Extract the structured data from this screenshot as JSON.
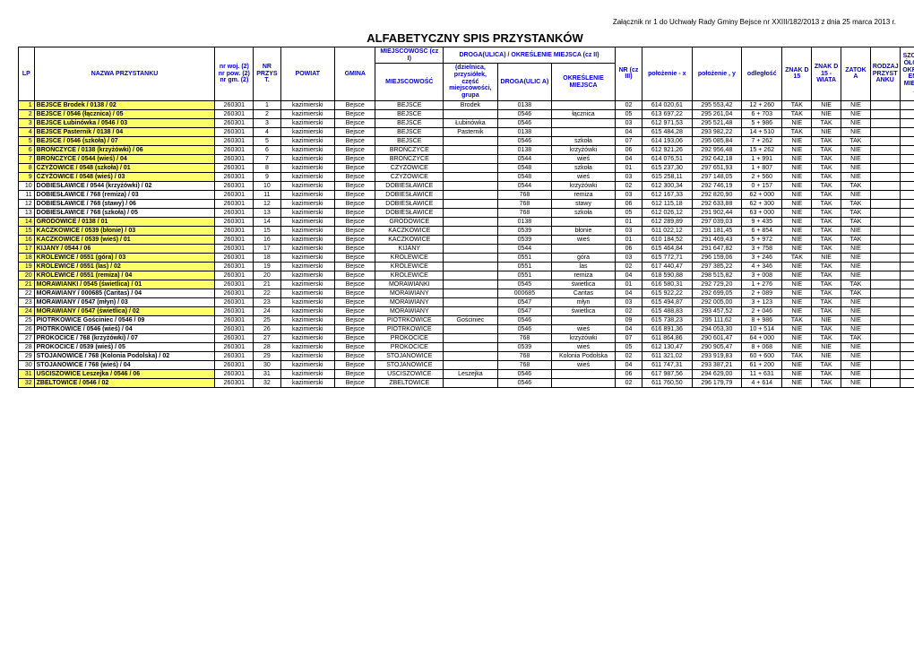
{
  "header_note": "Załącznik nr 1 do Uchwały Rady Gminy Bejsce nr XXIII/182/2013 z dnia 25 marca 2013 r.",
  "title": "ALFABETYCZNY SPIS PRZYSTANKÓW",
  "section1": "MIEJSCOWOŚĆ (cz I)",
  "section2": "DROGA(ULICA) / OKREŚLENIE MIEJSCA (cz II)",
  "columns": {
    "lp": "LP",
    "name": "NAZWA PRZYSTANKU",
    "nrwoj": "nr woj. (2) nr pow. (2) nr gm. (2)",
    "nrprzy": "NR PRZYS T.",
    "powiat": "POWIAT",
    "gmina": "GMINA",
    "miejsc": "MIEJSCOWOŚĆ",
    "dziel": "(dzielnica, przysiółek, część miejscowości, grupa",
    "droga": "DROGA(ULIC A)",
    "okres": "OKREŚLENIE MIEJSCA",
    "nrcz": "NR (cz III)",
    "polx": "położenie - x",
    "poly": "położenie , y",
    "odl": "odległość",
    "znak1": "ZNAK D 15",
    "znak2": "ZNAK D 15 -WIATA",
    "zatok": "ZATOK A",
    "rodzaj": "RODZAJ PRZYST ANKU",
    "szczeg": "SZCZEG ÓŁOWE OKREŚL ENIE MIEJSC A"
  },
  "rows": [
    {
      "lp": 1,
      "hl": true,
      "name": "BEJSCE Brodek / 0138 / 02",
      "nrwoj": "260301",
      "nrprzy": "1",
      "powiat": "kazimierski",
      "gmina": "Bejsce",
      "miejsc": "BEJSCE",
      "dziel": "Brodek",
      "droga": "0138",
      "okres": "",
      "nrcz": "02",
      "polx": "614 020,61",
      "poly": "295 553,42",
      "odl": "12 + 260",
      "znak1": "TAK",
      "znak2": "NIE",
      "zatok": "NIE"
    },
    {
      "lp": 2,
      "hl": true,
      "name": "BEJSCE  / 0546 (łącznica) / 05",
      "nrwoj": "260301",
      "nrprzy": "2",
      "powiat": "kazimierski",
      "gmina": "Bejsce",
      "miejsc": "BEJSCE",
      "dziel": "",
      "droga": "0546",
      "okres": "łącznica",
      "nrcz": "05",
      "polx": "613 697,22",
      "poly": "295 261,04",
      "odl": "6 + 703",
      "znak1": "TAK",
      "znak2": "NIE",
      "zatok": "NIE"
    },
    {
      "lp": 3,
      "hl": true,
      "name": "BEJSCE Łubinówka / 0546 / 03",
      "nrwoj": "260301",
      "nrprzy": "3",
      "powiat": "kazimierski",
      "gmina": "Bejsce",
      "miejsc": "BEJSCE",
      "dziel": "Łubinówka",
      "droga": "0546",
      "okres": "",
      "nrcz": "03",
      "polx": "612 971,53",
      "poly": "295 521,48",
      "odl": "5 + 986",
      "znak1": "NIE",
      "znak2": "TAK",
      "zatok": "NIE"
    },
    {
      "lp": 4,
      "hl": true,
      "name": "BEJSCE Pasternik / 0138  / 04",
      "nrwoj": "260301",
      "nrprzy": "4",
      "powiat": "kazimierski",
      "gmina": "Bejsce",
      "miejsc": "BEJSCE",
      "dziel": "Pasternik",
      "droga": "0138",
      "okres": "",
      "nrcz": "04",
      "polx": "615 484,28",
      "poly": "293 982,22",
      "odl": "14 + 510",
      "znak1": "TAK",
      "znak2": "NIE",
      "zatok": "NIE"
    },
    {
      "lp": 5,
      "hl": true,
      "name": "BEJSCE / 0546 (szkoła) / 07",
      "nrwoj": "260301",
      "nrprzy": "5",
      "powiat": "kazimierski",
      "gmina": "Bejsce",
      "miejsc": "BEJSCE",
      "dziel": "",
      "droga": "0546",
      "okres": "szkoła",
      "nrcz": "07",
      "polx": "614 193,06",
      "poly": "295 085,84",
      "odl": "7 + 262",
      "znak1": "NIE",
      "znak2": "TAK",
      "zatok": "TAK"
    },
    {
      "lp": 6,
      "hl": true,
      "name": "BROŃCZYCE / 0138  (krzyżówki) / 06",
      "nrwoj": "260301",
      "nrprzy": "6",
      "powiat": "kazimierski",
      "gmina": "Bejsce",
      "miejsc": "BROŃCZYCE",
      "dziel": "",
      "droga": "0138",
      "okres": "krzyżówki",
      "nrcz": "06",
      "polx": "612 921,26",
      "poly": "292 956,48",
      "odl": "15 + 262",
      "znak1": "NIE",
      "znak2": "TAK",
      "zatok": "NIE"
    },
    {
      "lp": 7,
      "hl": true,
      "name": "BROŃCZYCE / 0544 (wieś)  / 04",
      "nrwoj": "260301",
      "nrprzy": "7",
      "powiat": "kazimierski",
      "gmina": "Bejsce",
      "miejsc": "BROŃCZYCE",
      "dziel": "",
      "droga": "0544",
      "okres": "wieś",
      "nrcz": "04",
      "polx": "614 076,51",
      "poly": "292 642,18",
      "odl": "1 + 991",
      "znak1": "NIE",
      "znak2": "TAK",
      "zatok": "NIE"
    },
    {
      "lp": 8,
      "hl": true,
      "name": "CZYŻOWICE  / 0548  (szkoła) / 01",
      "nrwoj": "260301",
      "nrprzy": "8",
      "powiat": "kazimierski",
      "gmina": "Bejsce",
      "miejsc": "CZYŻOWICE",
      "dziel": "",
      "droga": "0548",
      "okres": "szkoła",
      "nrcz": "01",
      "polx": "615 237,30",
      "poly": "297 651,93",
      "odl": "1 + 807",
      "znak1": "NIE",
      "znak2": "TAK",
      "zatok": "NIE"
    },
    {
      "lp": 9,
      "hl": true,
      "name": "CZYŻOWICE / 0548  (wieś)  / 03",
      "nrwoj": "260301",
      "nrprzy": "9",
      "powiat": "kazimierski",
      "gmina": "Bejsce",
      "miejsc": "CZYŻOWICE",
      "dziel": "",
      "droga": "0548",
      "okres": "wieś",
      "nrcz": "03",
      "polx": "615 258,11",
      "poly": "297 148,05",
      "odl": "2 + 560",
      "znak1": "NIE",
      "znak2": "TAK",
      "zatok": "NIE"
    },
    {
      "lp": 10,
      "hl": false,
      "name": "DOBIESŁAWICE / 0544  (krzyżówki) / 02",
      "nrwoj": "260301",
      "nrprzy": "10",
      "powiat": "kazimierski",
      "gmina": "Bejsce",
      "miejsc": "DOBIESŁAWICE",
      "dziel": "",
      "droga": "0544",
      "okres": "krzyżówki",
      "nrcz": "02",
      "polx": "612 300,34",
      "poly": "292 746,19",
      "odl": "0 + 157",
      "znak1": "NIE",
      "znak2": "TAK",
      "zatok": "TAK"
    },
    {
      "lp": 11,
      "hl": false,
      "name": "DOBIESŁAWICE / 768  (remiza)  / 03",
      "nrwoj": "260301",
      "nrprzy": "11",
      "powiat": "kazimierski",
      "gmina": "Bejsce",
      "miejsc": "DOBIESŁAWICE",
      "dziel": "",
      "droga": "768",
      "okres": "remiza",
      "nrcz": "03",
      "polx": "612 167,33",
      "poly": "292 820,90",
      "odl": "62 + 000",
      "znak1": "NIE",
      "znak2": "TAK",
      "zatok": "NIE"
    },
    {
      "lp": 12,
      "hl": false,
      "name": "DOBIESŁAWICE  / 768  (stawy)  / 06",
      "nrwoj": "260301",
      "nrprzy": "12",
      "powiat": "kazimierski",
      "gmina": "Bejsce",
      "miejsc": "DOBIESŁAWICE",
      "dziel": "",
      "droga": "768",
      "okres": "stawy",
      "nrcz": "06",
      "polx": "612 115,18",
      "poly": "292 633,88",
      "odl": "62 + 300",
      "znak1": "NIE",
      "znak2": "TAK",
      "zatok": "TAK"
    },
    {
      "lp": 13,
      "hl": false,
      "name": "DOBIESŁAWICE / 768  (szkoła) / 05",
      "nrwoj": "260301",
      "nrprzy": "13",
      "powiat": "kazimierski",
      "gmina": "Bejsce",
      "miejsc": "DOBIESŁAWICE",
      "dziel": "",
      "droga": "768",
      "okres": "szkoła",
      "nrcz": "05",
      "polx": "612 026,12",
      "poly": "291 902,44",
      "odl": "63 + 000",
      "znak1": "NIE",
      "znak2": "TAK",
      "zatok": "TAK"
    },
    {
      "lp": 14,
      "hl": true,
      "name": "GRODOWICE / 0138  /  01",
      "nrwoj": "260301",
      "nrprzy": "14",
      "powiat": "kazimierski",
      "gmina": "Bejsce",
      "miejsc": "GRODOWICE",
      "dziel": "",
      "droga": "0138",
      "okres": "",
      "nrcz": "01",
      "polx": "612 289,89",
      "poly": "297 039,03",
      "odl": "9 + 435",
      "znak1": "NIE",
      "znak2": "TAK",
      "zatok": "TAK"
    },
    {
      "lp": 15,
      "hl": true,
      "name": "KACZKOWICE / 0539 (błonie)  / 03",
      "nrwoj": "260301",
      "nrprzy": "15",
      "powiat": "kazimierski",
      "gmina": "Bejsce",
      "miejsc": "KACZKOWICE",
      "dziel": "",
      "droga": "0539",
      "okres": "błonie",
      "nrcz": "03",
      "polx": "611 022,12",
      "poly": "291 181,45",
      "odl": "6 + 854",
      "znak1": "NIE",
      "znak2": "TAK",
      "zatok": "NIE"
    },
    {
      "lp": 16,
      "hl": true,
      "name": "KACZKOWICE / 0539  (wieś) / 01",
      "nrwoj": "260301",
      "nrprzy": "16",
      "powiat": "kazimierski",
      "gmina": "Bejsce",
      "miejsc": "KACZKOWICE",
      "dziel": "",
      "droga": "0539",
      "okres": "wieś",
      "nrcz": "01",
      "polx": "610 184,52",
      "poly": "291 469,43",
      "odl": "5 + 972",
      "znak1": "NIE",
      "znak2": "TAK",
      "zatok": "TAK"
    },
    {
      "lp": 17,
      "hl": true,
      "name": "KIJANY / 0544 / 06",
      "nrwoj": "260301",
      "nrprzy": "17",
      "powiat": "kazimierski",
      "gmina": "Bejsce",
      "miejsc": "KIJANY",
      "dziel": "",
      "droga": "0544",
      "okres": "",
      "nrcz": "06",
      "polx": "615 464,84",
      "poly": "291 647,82",
      "odl": "3 + 758",
      "znak1": "NIE",
      "znak2": "TAK",
      "zatok": "NIE"
    },
    {
      "lp": 18,
      "hl": true,
      "name": "KRÓLEWICE / 0551  (góra) / 03",
      "nrwoj": "260301",
      "nrprzy": "18",
      "powiat": "kazimierski",
      "gmina": "Bejsce",
      "miejsc": "KRÓLEWICE",
      "dziel": "",
      "droga": "0551",
      "okres": "góra",
      "nrcz": "03",
      "polx": "615 772,71",
      "poly": "296 159,06",
      "odl": "3 + 246",
      "znak1": "TAK",
      "znak2": "NIE",
      "zatok": "NIE"
    },
    {
      "lp": 19,
      "hl": true,
      "name": "KRÓLEWICE / 0551  (las) / 02",
      "nrwoj": "260301",
      "nrprzy": "19",
      "powiat": "kazimierski",
      "gmina": "Bejsce",
      "miejsc": "KRÓLEWICE",
      "dziel": "",
      "droga": "0551",
      "okres": "las",
      "nrcz": "02",
      "polx": "617 440,47",
      "poly": "297 385,22",
      "odl": "4 + 346",
      "znak1": "NIE",
      "znak2": "TAK",
      "zatok": "NIE"
    },
    {
      "lp": 20,
      "hl": true,
      "name": "KRÓLEWICE / 0551 (remiza) / 04",
      "nrwoj": "260301",
      "nrprzy": "20",
      "powiat": "kazimierski",
      "gmina": "Bejsce",
      "miejsc": "KRÓLEWICE",
      "dziel": "",
      "droga": "0551",
      "okres": "remiza",
      "nrcz": "04",
      "polx": "618 590,88",
      "poly": "298 515,82",
      "odl": "3 + 008",
      "znak1": "NIE",
      "znak2": "TAK",
      "zatok": "NIE"
    },
    {
      "lp": 21,
      "hl": true,
      "name": "MORAWIANKI / 0545  (świetlica)  / 01",
      "nrwoj": "260301",
      "nrprzy": "21",
      "powiat": "kazimierski",
      "gmina": "Bejsce",
      "miejsc": "MORAWIANKI",
      "dziel": "",
      "droga": "0545",
      "okres": "świetlica",
      "nrcz": "01",
      "polx": "616 580,31",
      "poly": "292 729,20",
      "odl": "1 + 276",
      "znak1": "NIE",
      "znak2": "TAK",
      "zatok": "TAK"
    },
    {
      "lp": 22,
      "hl": false,
      "name": "MORAWIANY / 000685 (Caritas) / 04",
      "nrwoj": "260301",
      "nrprzy": "22",
      "powiat": "kazimierski",
      "gmina": "Bejsce",
      "miejsc": "MORAWIANY",
      "dziel": "",
      "droga": "000685",
      "okres": "Caritas",
      "nrcz": "04",
      "polx": "615 922,22",
      "poly": "292 699,05",
      "odl": "2 + 089",
      "znak1": "NIE",
      "znak2": "TAK",
      "zatok": "TAK"
    },
    {
      "lp": 23,
      "hl": false,
      "name": "MORAWIANY / 0547  (młyn) / 03",
      "nrwoj": "260301",
      "nrprzy": "23",
      "powiat": "kazimierski",
      "gmina": "Bejsce",
      "miejsc": "MORAWIANY",
      "dziel": "",
      "droga": "0547",
      "okres": "młyn",
      "nrcz": "03",
      "polx": "615 494,87",
      "poly": "292 005,00",
      "odl": "3 + 123",
      "znak1": "NIE",
      "znak2": "TAK",
      "zatok": "NIE"
    },
    {
      "lp": 24,
      "hl": true,
      "name": "MORAWIANY / 0547 (świetlica) / 02",
      "nrwoj": "260301",
      "nrprzy": "24",
      "powiat": "kazimierski",
      "gmina": "Bejsce",
      "miejsc": "MORAWIANY",
      "dziel": "",
      "droga": "0547",
      "okres": "świetlica",
      "nrcz": "02",
      "polx": "615 488,83",
      "poly": "293 457,52",
      "odl": "2 + 046",
      "znak1": "NIE",
      "znak2": "TAK",
      "zatok": "NIE"
    },
    {
      "lp": 25,
      "hl": false,
      "name": "PIOTRKOWICE Gościniec / 0546 / 09",
      "nrwoj": "260301",
      "nrprzy": "25",
      "powiat": "kazimierski",
      "gmina": "Bejsce",
      "miejsc": "PIOTRKOWICE",
      "dziel": "Gościniec",
      "droga": "0546",
      "okres": "",
      "nrcz": "09",
      "polx": "615 738,23",
      "poly": "295 111,62",
      "odl": "8 + 986",
      "znak1": "TAK",
      "znak2": "NIE",
      "zatok": "NIE"
    },
    {
      "lp": 26,
      "hl": false,
      "name": "PIOTRKOWICE / 0546  (wieś) / 04",
      "nrwoj": "260301",
      "nrprzy": "26",
      "powiat": "kazimierski",
      "gmina": "Bejsce",
      "miejsc": "PIOTRKOWICE",
      "dziel": "",
      "droga": "0546",
      "okres": "wieś",
      "nrcz": "04",
      "polx": "616 891,36",
      "poly": "294 053,30",
      "odl": "10 + 514",
      "znak1": "NIE",
      "znak2": "TAK",
      "zatok": "NIE"
    },
    {
      "lp": 27,
      "hl": false,
      "name": "PROKOCICE / 768 (krzyżówki) / 07",
      "nrwoj": "260301",
      "nrprzy": "27",
      "powiat": "kazimierski",
      "gmina": "Bejsce",
      "miejsc": "PROKOCICE",
      "dziel": "",
      "droga": "768",
      "okres": "krzyżówki",
      "nrcz": "07",
      "polx": "611 864,86",
      "poly": "290 601,47",
      "odl": "64 + 000",
      "znak1": "NIE",
      "znak2": "TAK",
      "zatok": "TAK"
    },
    {
      "lp": 28,
      "hl": false,
      "name": "PROKOCICE / 0539   (wieś)   / 05",
      "nrwoj": "260301",
      "nrprzy": "28",
      "powiat": "kazimierski",
      "gmina": "Bejsce",
      "miejsc": "PROKOCICE",
      "dziel": "",
      "droga": "0539",
      "okres": "wieś",
      "nrcz": "05",
      "polx": "612 130,47",
      "poly": "290 905,47",
      "odl": "8 + 068",
      "znak1": "NIE",
      "znak2": "NIE",
      "zatok": "NIE"
    },
    {
      "lp": 29,
      "hl": false,
      "name": "STOJANOWICE / 768  (Kolonia Podolska)  / 02",
      "nrwoj": "260301",
      "nrprzy": "29",
      "powiat": "kazimierski",
      "gmina": "Bejsce",
      "miejsc": "STOJANOWICE",
      "dziel": "",
      "droga": "768",
      "okres": "Kolonia Podolska",
      "nrcz": "02",
      "polx": "611 321,02",
      "poly": "293 919,83",
      "odl": "60 + 600",
      "znak1": "TAK",
      "znak2": "NIE",
      "zatok": "NIE"
    },
    {
      "lp": 30,
      "hl": false,
      "name": "STOJANOWICE / 768 (wieś) / 04",
      "nrwoj": "260301",
      "nrprzy": "30",
      "powiat": "kazimierski",
      "gmina": "Bejsce",
      "miejsc": "STOJANOWICE",
      "dziel": "",
      "droga": "768",
      "okres": "wieś",
      "nrcz": "04",
      "polx": "611 747,31",
      "poly": "293 387,21",
      "odl": "61 + 200",
      "znak1": "NIE",
      "znak2": "TAK",
      "zatok": "NIE"
    },
    {
      "lp": 31,
      "hl": true,
      "name": "UŚCISZOWICE Leszejka / 0546 / 06",
      "nrwoj": "260301",
      "nrprzy": "31",
      "powiat": "kazimierski",
      "gmina": "Bejsce",
      "miejsc": "UŚCISZOWICE",
      "dziel": "Leszejka",
      "droga": "0546",
      "okres": "",
      "nrcz": "06",
      "polx": "617 987,56",
      "poly": "294 629,00",
      "odl": "11 + 631",
      "znak1": "NIE",
      "znak2": "TAK",
      "zatok": "NIE"
    },
    {
      "lp": 32,
      "hl": true,
      "name": "ZBELTOWICE / 0546  / 02",
      "nrwoj": "260301",
      "nrprzy": "32",
      "powiat": "kazimierski",
      "gmina": "Bejsce",
      "miejsc": "ZBELTOWICE",
      "dziel": "",
      "droga": "0546",
      "okres": "",
      "nrcz": "02",
      "polx": "611 760,50",
      "poly": "296 179,79",
      "odl": "4 + 614",
      "znak1": "NIE",
      "znak2": "TAK",
      "zatok": "NIE"
    }
  ]
}
